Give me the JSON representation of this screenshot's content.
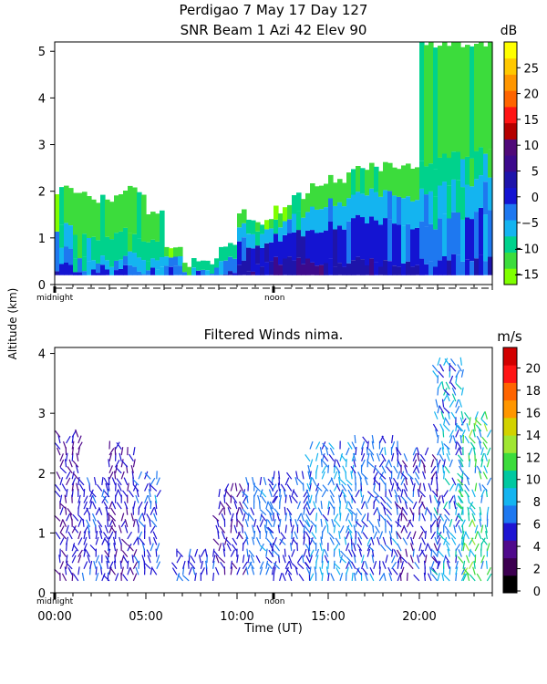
{
  "header": {
    "line1": "Perdigao    7 May 17 Day 127",
    "line2": "SNR Beam  1 Azi   42 Elev 90"
  },
  "shared": {
    "ylabel": "Altitude (km)",
    "xlabel": "Time (UT)",
    "midnight_label": "midnight",
    "noon_label": "noon"
  },
  "chart_data": [
    {
      "type": "heatmap",
      "title": "SNR Beam 1 Azi 42 Elev 90",
      "xlim": [
        0,
        24
      ],
      "ylim": [
        0,
        5.2
      ],
      "yticks": [
        "0",
        "1",
        "2",
        "3",
        "4",
        "5"
      ],
      "colorbar": {
        "unit": "dB",
        "ticks": [
          "25",
          "20",
          "15",
          "10",
          "5",
          "0",
          "−5",
          "−10",
          "−15"
        ],
        "levels": [
          -15,
          -12,
          -9,
          -6,
          -3,
          0,
          3,
          6,
          9,
          12,
          15,
          18,
          21,
          24,
          27,
          30
        ],
        "colors": [
          "#7fff00",
          "#3cdc3c",
          "#00d28c",
          "#14b4f0",
          "#1e78f0",
          "#1414d2",
          "#1e14aa",
          "#3c0a8c",
          "#500a78",
          "#b40000",
          "#ff1414",
          "#ff6400",
          "#ff9600",
          "#ffc800",
          "#ffff00"
        ]
      },
      "columns": [
        {
          "t": 0.0,
          "top": 2.05,
          "profile": [
            [
              0.35,
              5
            ],
            [
              0.7,
              4
            ],
            [
              1.2,
              3
            ],
            [
              2.0,
              1
            ]
          ]
        },
        {
          "t": 1.0,
          "top": 2.0,
          "profile": [
            [
              0.3,
              5
            ],
            [
              0.6,
              3
            ],
            [
              1.1,
              2
            ],
            [
              2.0,
              1
            ]
          ]
        },
        {
          "t": 2.0,
          "top": 1.8,
          "profile": [
            [
              0.3,
              5
            ],
            [
              0.5,
              3
            ],
            [
              1.0,
              2
            ],
            [
              1.8,
              1
            ]
          ]
        },
        {
          "t": 3.0,
          "top": 1.9,
          "profile": [
            [
              0.3,
              5
            ],
            [
              0.5,
              3
            ],
            [
              1.1,
              2
            ],
            [
              1.9,
              1
            ]
          ]
        },
        {
          "t": 4.0,
          "top": 2.0,
          "profile": [
            [
              0.3,
              4
            ],
            [
              0.6,
              3
            ],
            [
              1.0,
              2
            ],
            [
              2.0,
              1
            ]
          ]
        },
        {
          "t": 5.0,
          "top": 1.5,
          "profile": [
            [
              0.3,
              4
            ],
            [
              0.5,
              3
            ],
            [
              0.9,
              2
            ],
            [
              1.5,
              1
            ]
          ]
        },
        {
          "t": 6.0,
          "top": 0.7,
          "profile": [
            [
              0.3,
              4
            ],
            [
              0.5,
              3
            ],
            [
              0.7,
              1
            ]
          ]
        },
        {
          "t": 7.0,
          "top": 0.5,
          "profile": [
            [
              0.3,
              4
            ],
            [
              0.5,
              2
            ]
          ]
        },
        {
          "t": 8.0,
          "top": 0.5,
          "profile": [
            [
              0.3,
              4
            ],
            [
              0.5,
              2
            ]
          ]
        },
        {
          "t": 9.0,
          "top": 0.9,
          "profile": [
            [
              0.3,
              6
            ],
            [
              0.6,
              4
            ],
            [
              0.9,
              2
            ]
          ]
        },
        {
          "t": 10.0,
          "top": 1.5,
          "profile": [
            [
              0.4,
              6
            ],
            [
              0.9,
              5
            ],
            [
              1.2,
              3
            ],
            [
              1.5,
              1
            ]
          ]
        },
        {
          "t": 11.0,
          "top": 1.4,
          "profile": [
            [
              0.5,
              6
            ],
            [
              0.9,
              5
            ],
            [
              1.2,
              3
            ],
            [
              1.4,
              1
            ]
          ]
        },
        {
          "t": 12.0,
          "top": 1.6,
          "profile": [
            [
              0.5,
              6
            ],
            [
              1.0,
              5
            ],
            [
              1.3,
              3
            ],
            [
              1.6,
              1
            ]
          ]
        },
        {
          "t": 13.0,
          "top": 1.9,
          "profile": [
            [
              0.5,
              7
            ],
            [
              1.1,
              5
            ],
            [
              1.5,
              3
            ],
            [
              1.9,
              1
            ]
          ]
        },
        {
          "t": 14.0,
          "top": 2.2,
          "profile": [
            [
              0.5,
              7
            ],
            [
              1.2,
              5
            ],
            [
              1.7,
              3
            ],
            [
              2.2,
              1
            ]
          ]
        },
        {
          "t": 15.0,
          "top": 2.3,
          "profile": [
            [
              0.5,
              6
            ],
            [
              1.3,
              5
            ],
            [
              1.8,
              3
            ],
            [
              2.3,
              1
            ]
          ]
        },
        {
          "t": 16.0,
          "top": 2.45,
          "profile": [
            [
              0.5,
              6
            ],
            [
              1.4,
              5
            ],
            [
              1.9,
              3
            ],
            [
              2.45,
              1
            ]
          ]
        },
        {
          "t": 17.0,
          "top": 2.55,
          "profile": [
            [
              0.5,
              6
            ],
            [
              1.4,
              5
            ],
            [
              2.0,
              3
            ],
            [
              2.55,
              1
            ]
          ]
        },
        {
          "t": 18.0,
          "top": 2.6,
          "profile": [
            [
              0.5,
              6
            ],
            [
              1.4,
              5
            ],
            [
              2.0,
              3
            ],
            [
              2.6,
              1
            ]
          ]
        },
        {
          "t": 19.0,
          "top": 2.6,
          "profile": [
            [
              0.5,
              5
            ],
            [
              1.3,
              4
            ],
            [
              1.9,
              3
            ],
            [
              2.6,
              1
            ]
          ]
        },
        {
          "t": 20.0,
          "top": 5.2,
          "profile": [
            [
              0.5,
              5
            ],
            [
              1.3,
              4
            ],
            [
              2.0,
              3
            ],
            [
              2.6,
              2
            ],
            [
              5.2,
              1
            ]
          ]
        },
        {
          "t": 21.0,
          "top": 5.2,
          "profile": [
            [
              0.6,
              5
            ],
            [
              1.5,
              4
            ],
            [
              2.2,
              3
            ],
            [
              2.8,
              2
            ],
            [
              5.2,
              1
            ]
          ]
        },
        {
          "t": 22.0,
          "top": 5.2,
          "profile": [
            [
              0.6,
              5
            ],
            [
              1.5,
              4
            ],
            [
              2.2,
              3
            ],
            [
              2.8,
              2
            ],
            [
              5.2,
              1
            ]
          ]
        },
        {
          "t": 23.0,
          "top": 5.2,
          "profile": [
            [
              0.6,
              5
            ],
            [
              1.6,
              4
            ],
            [
              2.3,
              3
            ],
            [
              2.9,
              2
            ],
            [
              5.2,
              1
            ]
          ]
        }
      ]
    },
    {
      "type": "scatter",
      "title": "Filtered Winds nima.",
      "xlim": [
        0,
        24
      ],
      "ylim": [
        0,
        4.1
      ],
      "xticks": [
        "00:00",
        "05:00",
        "10:00",
        "15:00",
        "20:00"
      ],
      "yticks": [
        "0",
        "1",
        "2",
        "3",
        "4"
      ],
      "colorbar": {
        "unit": "m/s",
        "ticks": [
          "20",
          "18",
          "16",
          "14",
          "12",
          "10",
          "8",
          "6",
          "4",
          "2",
          "0"
        ],
        "colors": [
          "#000000",
          "#3c0050",
          "#500a8c",
          "#1e14d2",
          "#1e78f0",
          "#14b4f0",
          "#00c8a0",
          "#3cdc3c",
          "#a0e632",
          "#d2d200",
          "#ff9600",
          "#ff6400",
          "#ff1414",
          "#d20000"
        ]
      },
      "wind_blocks": [
        {
          "t0": 0.3,
          "t1": 1.6,
          "h0": 0.2,
          "h1": 2.7,
          "speed": [
            3,
            5
          ]
        },
        {
          "t0": 1.6,
          "t1": 3.0,
          "h0": 0.2,
          "h1": 1.9,
          "speed": [
            4,
            6
          ]
        },
        {
          "t0": 3.0,
          "t1": 4.6,
          "h0": 0.2,
          "h1": 2.5,
          "speed": [
            3,
            5
          ]
        },
        {
          "t0": 4.6,
          "t1": 5.6,
          "h0": 0.3,
          "h1": 2.0,
          "speed": [
            4,
            7
          ]
        },
        {
          "t0": 6.7,
          "t1": 8.8,
          "h0": 0.2,
          "h1": 0.7,
          "speed": [
            4,
            6
          ]
        },
        {
          "t0": 9.0,
          "t1": 10.6,
          "h0": 0.3,
          "h1": 1.8,
          "speed": [
            3,
            5
          ]
        },
        {
          "t0": 10.6,
          "t1": 12.0,
          "h0": 0.3,
          "h1": 1.9,
          "speed": [
            5,
            7
          ]
        },
        {
          "t0": 12.0,
          "t1": 14.0,
          "h0": 0.2,
          "h1": 2.0,
          "speed": [
            4,
            6
          ]
        },
        {
          "t0": 14.0,
          "t1": 16.5,
          "h0": 0.2,
          "h1": 2.5,
          "speed": [
            5,
            8
          ]
        },
        {
          "t0": 16.5,
          "t1": 19.0,
          "h0": 0.2,
          "h1": 2.6,
          "speed": [
            4,
            7
          ]
        },
        {
          "t0": 19.0,
          "t1": 21.0,
          "h0": 0.2,
          "h1": 2.4,
          "speed": [
            3,
            6
          ]
        },
        {
          "t0": 21.0,
          "t1": 22.4,
          "h0": 0.2,
          "h1": 3.9,
          "speed": [
            4,
            9
          ]
        },
        {
          "t0": 22.4,
          "t1": 24.0,
          "h0": 0.2,
          "h1": 3.0,
          "speed": [
            6,
            12
          ]
        }
      ]
    }
  ]
}
